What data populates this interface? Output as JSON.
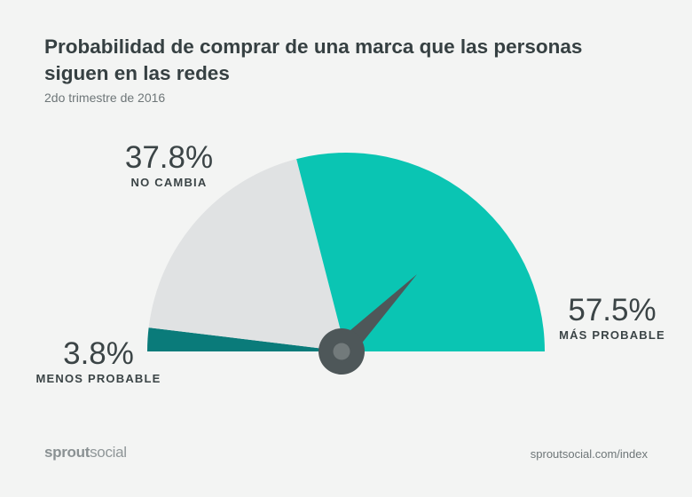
{
  "header": {
    "title": "Probabilidad de comprar de una marca que las personas siguen en las redes",
    "subtitle": "2do trimestre de 2016"
  },
  "chart_data": {
    "type": "pie",
    "slices": [
      {
        "label": "MENOS PROBABLE",
        "value": 3.8,
        "display": "3.8%",
        "color": "#0a7b7a"
      },
      {
        "label": "NO CAMBIA",
        "value": 37.8,
        "display": "37.8%",
        "color": "#e0e2e3"
      },
      {
        "label": "MÁS PROBABLE",
        "value": 57.5,
        "display": "57.5%",
        "color": "#0ac5b3"
      }
    ],
    "needle_color": "#4e5759",
    "hub_inner_color": "#727a7b"
  },
  "footer": {
    "brand_bold": "sprout",
    "brand_light": "social",
    "url": "sproutsocial.com/index"
  }
}
